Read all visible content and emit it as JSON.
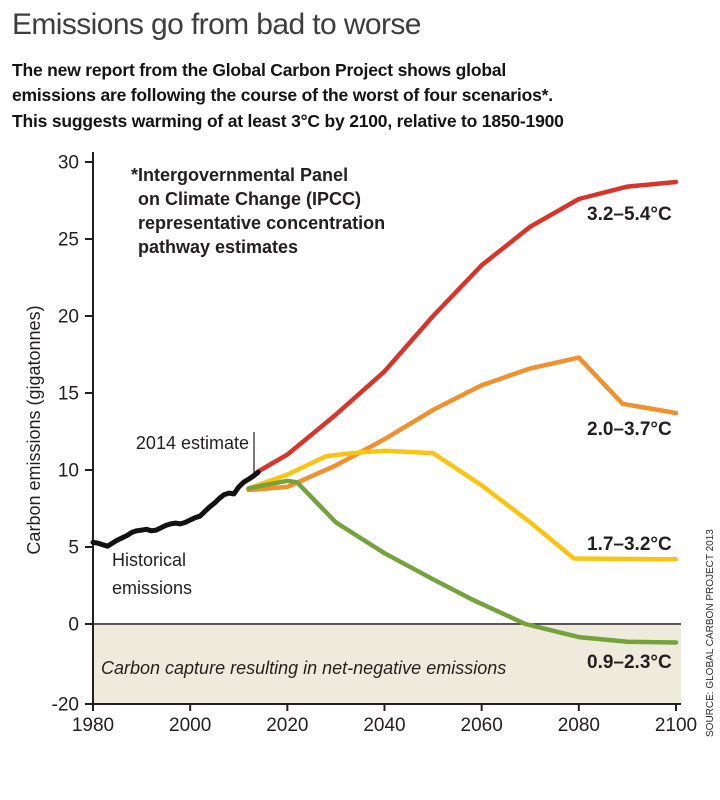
{
  "header": {
    "title": "Emissions go from bad to worse",
    "subtitle_lines": [
      "The new report from the Global Carbon Project shows global",
      "emissions are following the course of the worst of four scenarios*.",
      "This suggests warming of at least 3°C by 2100, relative to 1850-1900"
    ]
  },
  "chart_data": {
    "type": "line",
    "title": "Emissions go from bad to worse",
    "xlabel": "",
    "ylabel": "Carbon emissions (gigatonnes)",
    "x_ticks": [
      1980,
      2000,
      2020,
      2040,
      2060,
      2080,
      2100
    ],
    "y_ticks": [
      30,
      25,
      20,
      15,
      10,
      5,
      0,
      -20
    ],
    "xlim": [
      1980,
      2100
    ],
    "ylim_note": "linear 0-30 above zero; axis compressed below zero down to -20",
    "grid": false,
    "legend_position": "labels at line ends, right side",
    "negative_region": {
      "label": "Carbon capture resulting in net-negative emissions",
      "fill": "#eeebdc",
      "from": 0,
      "to": -20
    },
    "footnote_lines": [
      "*Intergovernmental Panel",
      "on Climate Change (IPCC)",
      "representative concentration",
      "pathway estimates"
    ],
    "annotations": {
      "estimate_2014": "2014 estimate",
      "historical_line1": "Historical",
      "historical_line2": "emissions",
      "source": "SOURCE: GLOBAL CARBON PROJECT 2013"
    },
    "series": [
      {
        "name": "historical-emissions",
        "label": "",
        "color": "#121212",
        "width": 5,
        "points": [
          [
            1980,
            5.3
          ],
          [
            1981,
            5.25
          ],
          [
            1982,
            5.15
          ],
          [
            1983,
            5.05
          ],
          [
            1984,
            5.25
          ],
          [
            1985,
            5.45
          ],
          [
            1986,
            5.6
          ],
          [
            1987,
            5.75
          ],
          [
            1988,
            5.95
          ],
          [
            1989,
            6.05
          ],
          [
            1990,
            6.1
          ],
          [
            1991,
            6.15
          ],
          [
            1992,
            6.05
          ],
          [
            1993,
            6.1
          ],
          [
            1994,
            6.25
          ],
          [
            1995,
            6.4
          ],
          [
            1996,
            6.5
          ],
          [
            1997,
            6.55
          ],
          [
            1998,
            6.5
          ],
          [
            1999,
            6.6
          ],
          [
            2000,
            6.75
          ],
          [
            2001,
            6.9
          ],
          [
            2002,
            7.0
          ],
          [
            2003,
            7.3
          ],
          [
            2004,
            7.6
          ],
          [
            2005,
            7.85
          ],
          [
            2006,
            8.15
          ],
          [
            2007,
            8.4
          ],
          [
            2008,
            8.5
          ],
          [
            2009,
            8.45
          ],
          [
            2010,
            8.9
          ],
          [
            2011,
            9.2
          ],
          [
            2012,
            9.4
          ],
          [
            2013,
            9.6
          ],
          [
            2014,
            9.85
          ]
        ]
      },
      {
        "name": "rcp8.5-worst-case",
        "label": "3.2–5.4°C",
        "color": "#d7352a",
        "width": 4.5,
        "points": [
          [
            2012,
            9.4
          ],
          [
            2014,
            9.9
          ],
          [
            2020,
            11.0
          ],
          [
            2030,
            13.6
          ],
          [
            2040,
            16.4
          ],
          [
            2050,
            20.0
          ],
          [
            2060,
            23.3
          ],
          [
            2070,
            25.8
          ],
          [
            2080,
            27.6
          ],
          [
            2090,
            28.4
          ],
          [
            2100,
            28.7
          ]
        ]
      },
      {
        "name": "rcp6.0",
        "label": "2.0–3.7°C",
        "color": "#f0912d",
        "width": 4.5,
        "points": [
          [
            2012,
            8.7
          ],
          [
            2020,
            8.9
          ],
          [
            2030,
            10.3
          ],
          [
            2040,
            12.0
          ],
          [
            2050,
            13.9
          ],
          [
            2060,
            15.5
          ],
          [
            2070,
            16.6
          ],
          [
            2080,
            17.3
          ],
          [
            2089,
            14.3
          ],
          [
            2100,
            13.7
          ]
        ]
      },
      {
        "name": "rcp4.5",
        "label": "1.7–3.2°C",
        "color": "#fbc411",
        "width": 4.5,
        "points": [
          [
            2012,
            8.8
          ],
          [
            2020,
            9.7
          ],
          [
            2028,
            10.9
          ],
          [
            2035,
            11.15
          ],
          [
            2040,
            11.25
          ],
          [
            2050,
            11.1
          ],
          [
            2060,
            9.0
          ],
          [
            2070,
            6.6
          ],
          [
            2079,
            4.25
          ],
          [
            2100,
            4.2
          ]
        ]
      },
      {
        "name": "rcp2.6",
        "label": "0.9–2.3°C",
        "color": "#76a23c",
        "width": 4.5,
        "points": [
          [
            2012,
            8.8
          ],
          [
            2015,
            9.0
          ],
          [
            2020,
            9.3
          ],
          [
            2022,
            9.2
          ],
          [
            2030,
            6.6
          ],
          [
            2040,
            4.6
          ],
          [
            2050,
            2.9
          ],
          [
            2058,
            1.6
          ],
          [
            2069,
            0.0
          ],
          [
            2080,
            -0.85
          ],
          [
            2090,
            -1.15
          ],
          [
            2100,
            -1.2
          ]
        ]
      }
    ]
  }
}
